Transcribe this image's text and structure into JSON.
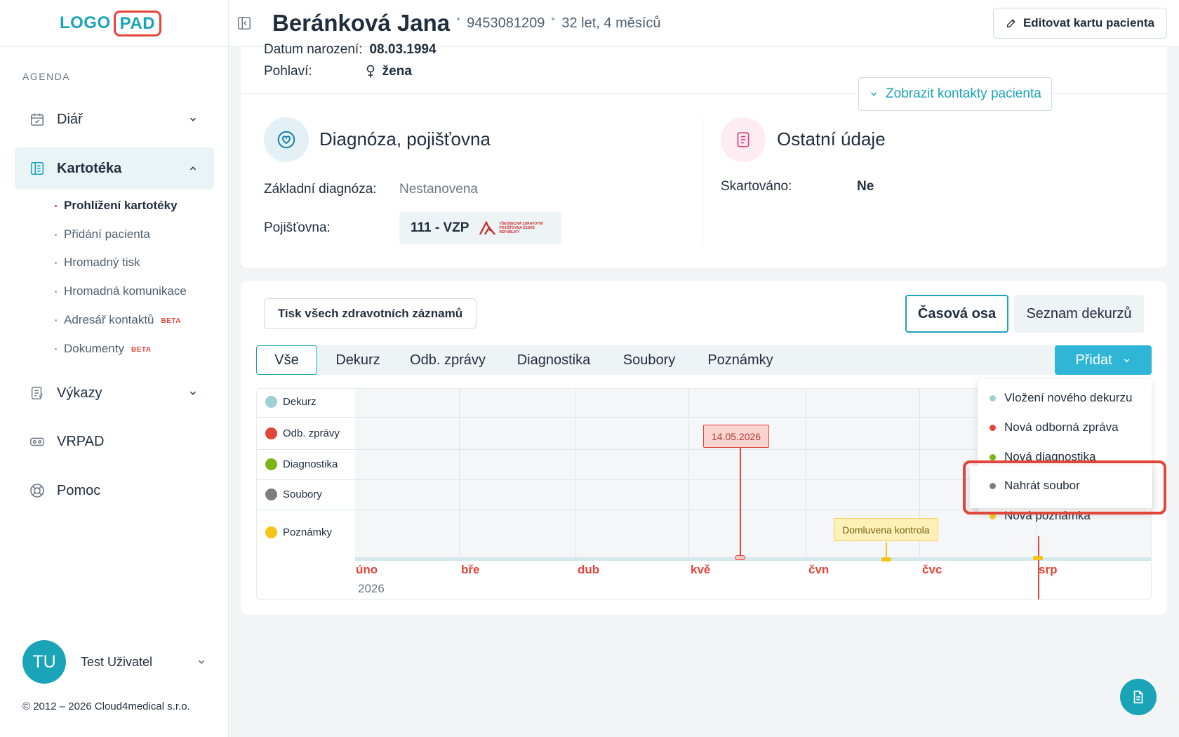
{
  "logo": {
    "part1": "LOGO",
    "part2": "PAD"
  },
  "sidebar": {
    "section": "AGENDA",
    "items": [
      {
        "label": "Diář",
        "icon": "calendar-icon"
      },
      {
        "label": "Kartotéka",
        "icon": "card-index-icon"
      },
      {
        "label": "Výkazy",
        "icon": "report-icon"
      },
      {
        "label": "VRPAD",
        "icon": "vr-headset-icon"
      },
      {
        "label": "Pomoc",
        "icon": "lifebuoy-icon"
      }
    ],
    "subitems": [
      {
        "label": "Prohlížení kartotéky"
      },
      {
        "label": "Přidání pacienta"
      },
      {
        "label": "Hromadný tisk"
      },
      {
        "label": "Hromadná komunikace"
      },
      {
        "label": "Adresář kontaktů",
        "badge": "BETA"
      },
      {
        "label": "Dokumenty",
        "badge": "BETA"
      }
    ],
    "user": {
      "initials": "TU",
      "name": "Test Uživatel"
    },
    "copyright": "© 2012 – 2026 Cloud4medical s.r.o."
  },
  "header": {
    "name": "Beránková Jana",
    "id": "9453081209",
    "age": "32 let, 4 měsíců",
    "edit_label": "Editovat kartu pacienta"
  },
  "patient": {
    "dob_label": "Datum narození:",
    "dob": "08.03.1994",
    "sex_label": "Pohlaví:",
    "sex": "žena",
    "contacts_label": "Zobrazit kontakty pacienta"
  },
  "diagnosis": {
    "title": "Diagnóza, pojišťovna",
    "base_label": "Základní diagnóza:",
    "base_value": "Nestanovena",
    "insurer_label": "Pojišťovna:",
    "insurer_value": "111 - VZP",
    "insurer_logo_text": "VŠEOBECNÁ ZDRAVOTNÍ POJIŠŤOVNA ČESKÉ REPUBLIKY"
  },
  "other": {
    "title": "Ostatní údaje",
    "shred_label": "Skartováno:",
    "shred_value": "Ne"
  },
  "timeline": {
    "print_label": "Tisk všech zdravotních záznamů",
    "view_tabs": [
      "Časová osa",
      "Seznam dekurzů"
    ],
    "filters": [
      "Vše",
      "Dekurz",
      "Odb. zprávy",
      "Diagnostika",
      "Soubory",
      "Poznámky"
    ],
    "add_label": "Přidat",
    "rows": [
      {
        "label": "Dekurz",
        "color": "#9fd0d6"
      },
      {
        "label": "Odb. zprávy",
        "color": "#e2453a"
      },
      {
        "label": "Diagnostika",
        "color": "#7cb518"
      },
      {
        "label": "Soubory",
        "color": "#7d7d7d"
      },
      {
        "label": "Poznámky",
        "color": "#f5c518"
      }
    ],
    "months": [
      "úno",
      "bře",
      "dub",
      "kvě",
      "čvn",
      "čvc",
      "srp"
    ],
    "year": "2026",
    "events": [
      {
        "label": "14.05.2026",
        "row": "Odb. zprávy"
      },
      {
        "label": "Domluvena kontrola",
        "row": "Poznámky"
      }
    ]
  },
  "dropdown": {
    "items": [
      {
        "label": "Vložení nového dekurzu",
        "color": "#9fd0d6"
      },
      {
        "label": "Nová odborná zpráva",
        "color": "#e2453a"
      },
      {
        "label": "Nová diagnostika",
        "color": "#7cb518"
      },
      {
        "label": "Nahrát soubor",
        "color": "#7d7d7d"
      },
      {
        "label": "Nová poznámka",
        "color": "#f5c518"
      }
    ]
  }
}
